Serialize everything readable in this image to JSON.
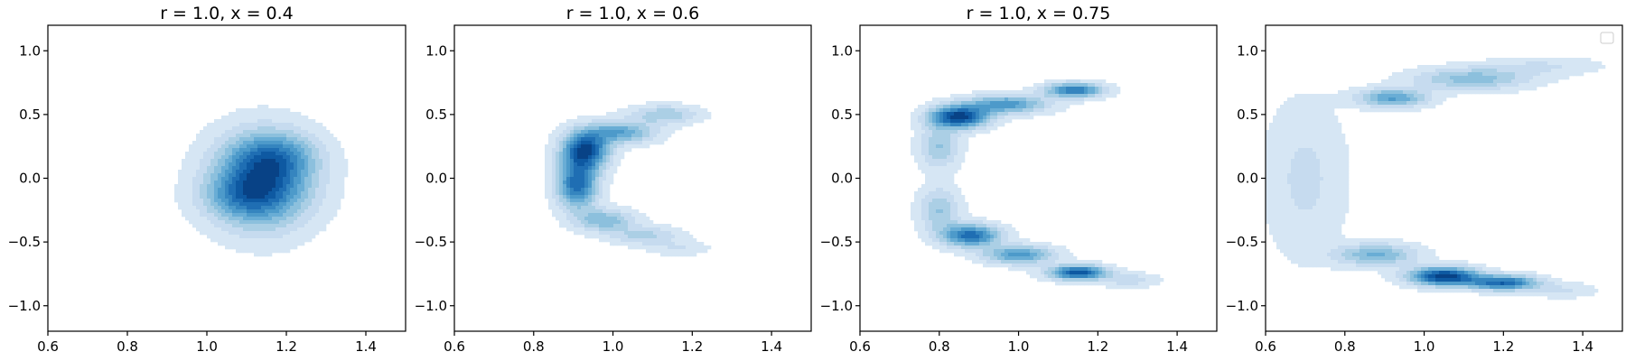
{
  "chart_data": [
    {
      "type": "heatmap",
      "subtype": "kde-contour",
      "title": "r = 1.0, x = 0.4",
      "xlim": [
        0.6,
        1.5
      ],
      "ylim": [
        -1.2,
        1.2
      ],
      "xticks": [
        0.6,
        0.8,
        1.0,
        1.2,
        1.4
      ],
      "yticks": [
        -1.0,
        -0.5,
        0.0,
        0.5,
        1.0
      ],
      "xtick_labels": [
        "0.6",
        "0.8",
        "1.0",
        "1.2",
        "1.4"
      ],
      "ytick_labels": [
        "−1.0",
        "−0.5",
        "0.0",
        "0.5",
        "1.0"
      ],
      "colormap": "Blues",
      "levels": 10,
      "blobs": [
        {
          "x": 1.14,
          "y": -0.02,
          "sx": 0.085,
          "sy": 0.24,
          "w": 1.0
        },
        {
          "x": 1.18,
          "y": 0.18,
          "sx": 0.07,
          "sy": 0.12,
          "w": 0.35
        },
        {
          "x": 1.08,
          "y": -0.15,
          "sx": 0.07,
          "sy": 0.12,
          "w": 0.3
        }
      ]
    },
    {
      "type": "heatmap",
      "subtype": "kde-contour",
      "title": "r = 1.0, x = 0.6",
      "xlim": [
        0.6,
        1.5
      ],
      "ylim": [
        -1.2,
        1.2
      ],
      "xticks": [
        0.6,
        0.8,
        1.0,
        1.2,
        1.4
      ],
      "yticks": [
        -1.0,
        -0.5,
        0.0,
        0.5,
        1.0
      ],
      "xtick_labels": [
        "0.6",
        "0.8",
        "1.0",
        "1.2",
        "1.4"
      ],
      "ytick_labels": [
        "−1.0",
        "−0.5",
        "0.0",
        "0.5",
        "1.0"
      ],
      "colormap": "Blues",
      "levels": 10,
      "blobs": [
        {
          "x": 0.93,
          "y": 0.22,
          "sx": 0.04,
          "sy": 0.1,
          "w": 1.0
        },
        {
          "x": 0.91,
          "y": -0.05,
          "sx": 0.035,
          "sy": 0.13,
          "w": 0.85
        },
        {
          "x": 1.02,
          "y": 0.36,
          "sx": 0.06,
          "sy": 0.06,
          "w": 0.55
        },
        {
          "x": 1.13,
          "y": 0.5,
          "sx": 0.06,
          "sy": 0.05,
          "w": 0.35
        },
        {
          "x": 0.98,
          "y": -0.33,
          "sx": 0.05,
          "sy": 0.06,
          "w": 0.45
        },
        {
          "x": 1.08,
          "y": -0.45,
          "sx": 0.06,
          "sy": 0.05,
          "w": 0.3
        },
        {
          "x": 1.17,
          "y": -0.55,
          "sx": 0.05,
          "sy": 0.04,
          "w": 0.15
        }
      ]
    },
    {
      "type": "heatmap",
      "subtype": "kde-contour",
      "title": "r = 1.0, x = 0.75",
      "xlim": [
        0.6,
        1.5
      ],
      "ylim": [
        -1.2,
        1.2
      ],
      "xticks": [
        0.6,
        0.8,
        1.0,
        1.2,
        1.4
      ],
      "yticks": [
        -1.0,
        -0.5,
        0.0,
        0.5,
        1.0
      ],
      "xtick_labels": [
        "0.6",
        "0.8",
        "1.0",
        "1.2",
        "1.4"
      ],
      "ytick_labels": [
        "−1.0",
        "−0.5",
        "0.0",
        "0.5",
        "1.0"
      ],
      "colormap": "Blues",
      "levels": 10,
      "blobs": [
        {
          "x": 0.85,
          "y": 0.48,
          "sx": 0.05,
          "sy": 0.06,
          "w": 1.0
        },
        {
          "x": 0.97,
          "y": 0.58,
          "sx": 0.07,
          "sy": 0.05,
          "w": 0.6
        },
        {
          "x": 1.14,
          "y": 0.69,
          "sx": 0.05,
          "sy": 0.04,
          "w": 0.75
        },
        {
          "x": 0.8,
          "y": 0.25,
          "sx": 0.035,
          "sy": 0.12,
          "w": 0.35
        },
        {
          "x": 0.8,
          "y": -0.25,
          "sx": 0.035,
          "sy": 0.12,
          "w": 0.35
        },
        {
          "x": 0.88,
          "y": -0.45,
          "sx": 0.05,
          "sy": 0.06,
          "w": 0.8
        },
        {
          "x": 1.0,
          "y": -0.6,
          "sx": 0.06,
          "sy": 0.05,
          "w": 0.6
        },
        {
          "x": 1.15,
          "y": -0.74,
          "sx": 0.05,
          "sy": 0.04,
          "w": 0.9
        },
        {
          "x": 1.28,
          "y": -0.8,
          "sx": 0.05,
          "sy": 0.04,
          "w": 0.2
        }
      ]
    },
    {
      "type": "heatmap",
      "subtype": "kde-contour",
      "title": "",
      "xlim": [
        0.6,
        1.5
      ],
      "ylim": [
        -1.2,
        1.2
      ],
      "xticks": [
        0.6,
        0.8,
        1.0,
        1.2,
        1.4
      ],
      "yticks": [
        -1.0,
        -0.5,
        0.0,
        0.5,
        1.0
      ],
      "xtick_labels": [
        "0.6",
        "0.8",
        "1.0",
        "1.2",
        "1.4"
      ],
      "ytick_labels": [
        "−1.0",
        "−0.5",
        "0.0",
        "0.5",
        "1.0"
      ],
      "colormap": "Blues",
      "levels": 10,
      "legend": "top-right (empty)",
      "blobs": [
        {
          "x": 0.92,
          "y": 0.63,
          "sx": 0.06,
          "sy": 0.05,
          "w": 0.55
        },
        {
          "x": 1.12,
          "y": 0.78,
          "sx": 0.1,
          "sy": 0.06,
          "w": 0.4
        },
        {
          "x": 1.3,
          "y": 0.88,
          "sx": 0.1,
          "sy": 0.05,
          "w": 0.15
        },
        {
          "x": 0.7,
          "y": 0.2,
          "sx": 0.07,
          "sy": 0.35,
          "w": 0.1
        },
        {
          "x": 0.7,
          "y": -0.2,
          "sx": 0.07,
          "sy": 0.35,
          "w": 0.1
        },
        {
          "x": 0.88,
          "y": -0.6,
          "sx": 0.07,
          "sy": 0.06,
          "w": 0.45
        },
        {
          "x": 1.05,
          "y": -0.77,
          "sx": 0.06,
          "sy": 0.05,
          "w": 1.0
        },
        {
          "x": 1.2,
          "y": -0.82,
          "sx": 0.06,
          "sy": 0.04,
          "w": 0.8
        },
        {
          "x": 1.35,
          "y": -0.88,
          "sx": 0.06,
          "sy": 0.04,
          "w": 0.15
        }
      ]
    }
  ]
}
